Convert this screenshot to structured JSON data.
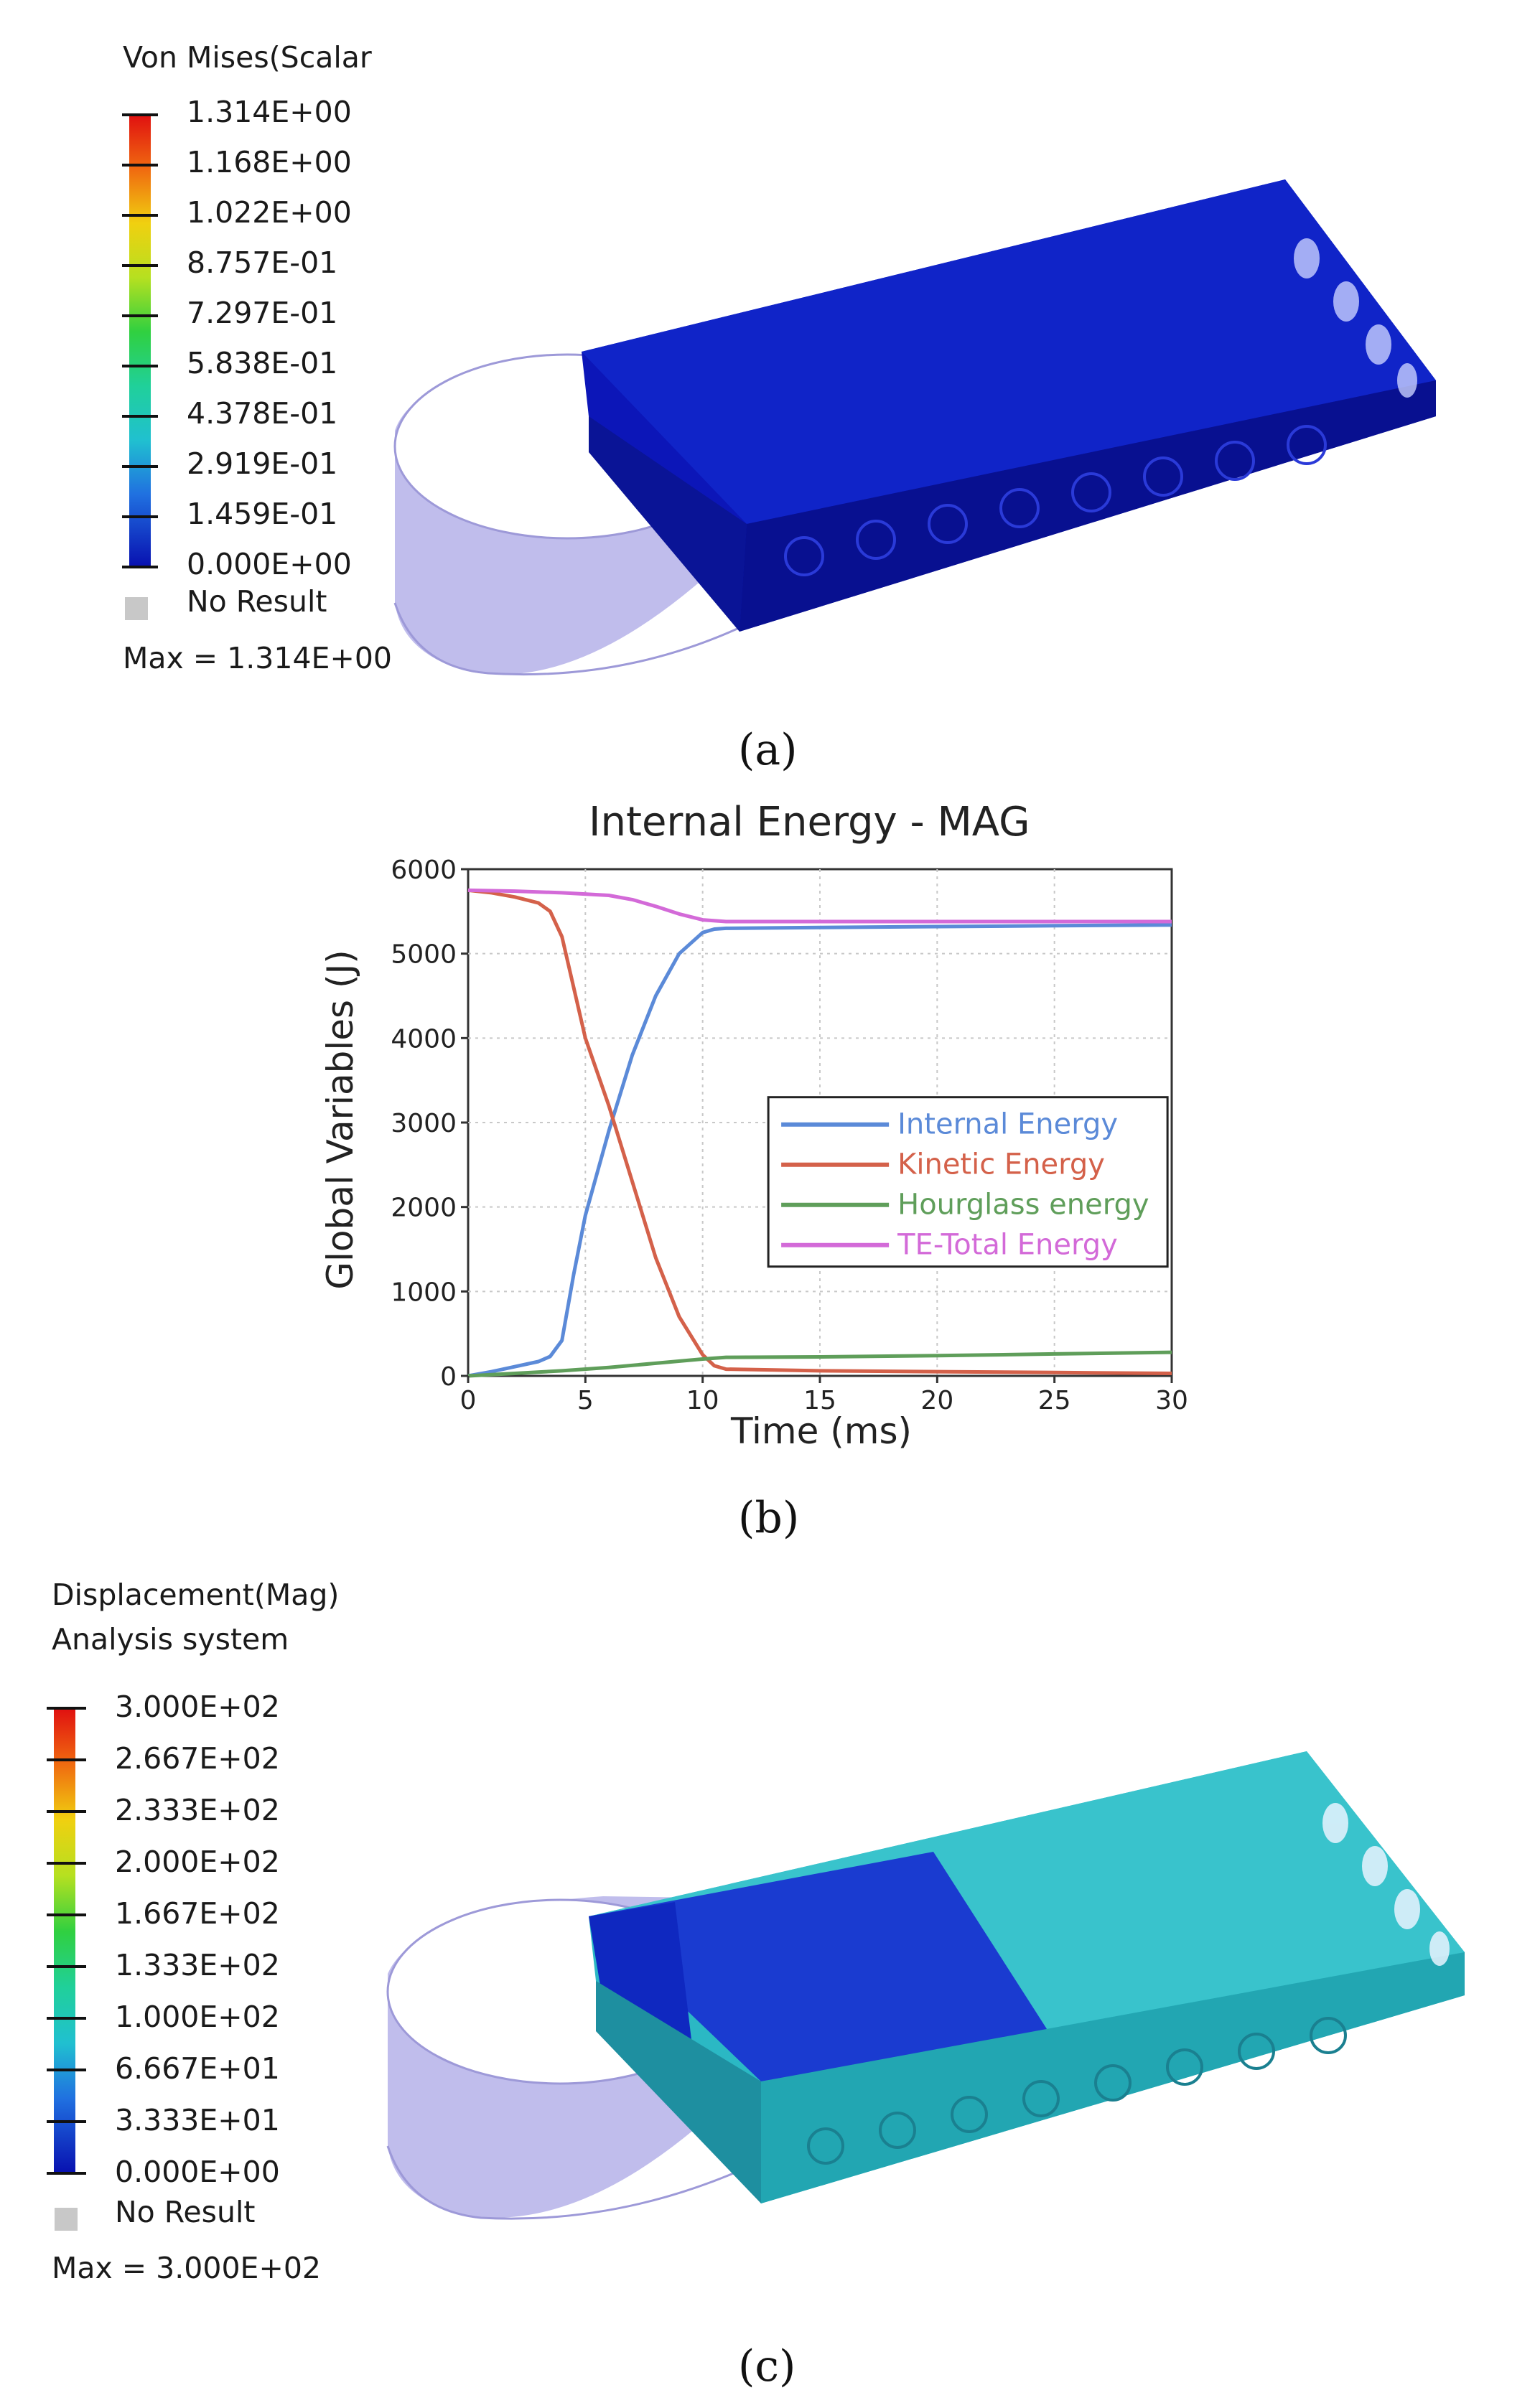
{
  "panel_a": {
    "caption": "(a)",
    "legend_title": "Von Mises(Scalar",
    "levels": [
      "1.314E+00",
      "1.168E+00",
      "1.022E+00",
      "8.757E-01",
      "7.297E-01",
      "5.838E-01",
      "4.378E-01",
      "2.919E-01",
      "1.459E-01",
      "0.000E+00"
    ],
    "no_result": "No Result",
    "max_text": "Max = 1.314E+00",
    "model_color": "#0a1ab0"
  },
  "panel_b": {
    "caption": "(b)"
  },
  "panel_c": {
    "caption": "(c)",
    "legend_title_1": "Displacement(Mag)",
    "legend_title_2": "Analysis system",
    "levels": [
      "3.000E+02",
      "2.667E+02",
      "2.333E+02",
      "2.000E+02",
      "1.667E+02",
      "1.333E+02",
      "1.000E+02",
      "6.667E+01",
      "3.333E+01",
      "0.000E+00"
    ],
    "no_result": "No Result",
    "max_text": "Max = 3.000E+02",
    "model_color": "#2bb8c4"
  },
  "colors": {
    "internal": "#5b8ad8",
    "kinetic": "#d4614a",
    "hourglass": "#5f9e5a",
    "total": "#d36ad8"
  },
  "chart_data": {
    "type": "line",
    "title": "Internal Energy - MAG",
    "xlabel": "Time (ms)",
    "ylabel": "Global Variables (J)",
    "xlim": [
      0,
      30
    ],
    "ylim": [
      0,
      6000
    ],
    "xticks": [
      0,
      5,
      10,
      15,
      20,
      25,
      30
    ],
    "yticks": [
      0,
      1000,
      2000,
      3000,
      4000,
      5000,
      6000
    ],
    "legend_position": "center-right",
    "series": [
      {
        "name": "Internal Energy",
        "color_key": "internal",
        "x": [
          0,
          1,
          2,
          3,
          3.5,
          4,
          4.5,
          5,
          6,
          7,
          8,
          9,
          10,
          10.5,
          11,
          15,
          20,
          25,
          30
        ],
        "y": [
          0,
          50,
          110,
          170,
          230,
          420,
          1200,
          1900,
          2900,
          3800,
          4500,
          5000,
          5250,
          5290,
          5300,
          5310,
          5320,
          5330,
          5340
        ]
      },
      {
        "name": "Kinetic Energy",
        "color_key": "kinetic",
        "x": [
          0,
          1,
          2,
          3,
          3.5,
          4,
          4.5,
          5,
          6,
          7,
          8,
          9,
          10,
          10.5,
          11,
          15,
          20,
          25,
          30
        ],
        "y": [
          5750,
          5720,
          5670,
          5600,
          5500,
          5200,
          4600,
          4000,
          3200,
          2300,
          1400,
          700,
          250,
          120,
          80,
          60,
          50,
          40,
          30
        ]
      },
      {
        "name": "Hourglass energy",
        "color_key": "hourglass",
        "x": [
          0,
          2,
          4,
          6,
          8,
          10,
          11,
          15,
          20,
          25,
          30
        ],
        "y": [
          0,
          30,
          60,
          100,
          150,
          200,
          220,
          225,
          240,
          260,
          280
        ]
      },
      {
        "name": "TE-Total Energy",
        "color_key": "total",
        "x": [
          0,
          2,
          4,
          6,
          7,
          8,
          9,
          10,
          11,
          15,
          20,
          25,
          30
        ],
        "y": [
          5750,
          5740,
          5720,
          5690,
          5640,
          5560,
          5470,
          5400,
          5380,
          5380,
          5380,
          5380,
          5380
        ]
      }
    ]
  }
}
